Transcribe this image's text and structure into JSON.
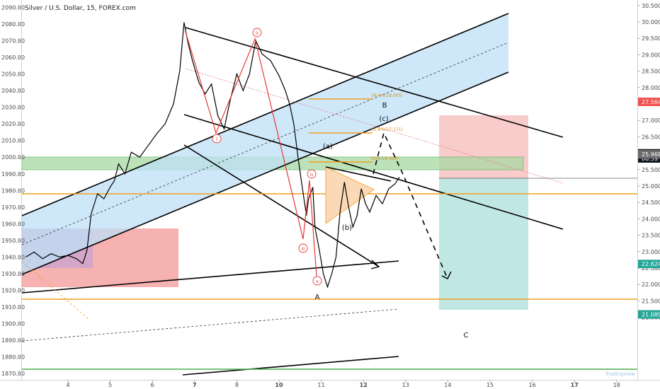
{
  "chart_data": {
    "type": "line",
    "title": "Silver / U.S. Dollar, 15, FOREX.com",
    "left_axis": {
      "ticks": [
        1870,
        1880,
        1890,
        1900,
        1910,
        1920,
        1930,
        1940,
        1950,
        1960,
        1970,
        1980,
        1990,
        2000,
        2010,
        2020,
        2030,
        2040,
        2050,
        2060,
        2070,
        2080,
        2090
      ],
      "tick_labels": [
        "1870.00",
        "1880.00",
        "1890.00",
        "1900.00",
        "1910.00",
        "1920.00",
        "1930.00",
        "1940.00",
        "1950.00",
        "1960.00",
        "1970.00",
        "1980.00",
        "1990.00",
        "2000.00",
        "2010.00",
        "2020.00",
        "2030.00",
        "2040.00",
        "2050.00",
        "2060.00",
        "2070.00",
        "2080.00",
        "2090.00"
      ]
    },
    "right_axis": {
      "ticks": [
        21.0,
        21.5,
        22.0,
        22.5,
        23.0,
        23.5,
        24.0,
        24.5,
        25.0,
        25.5,
        26.0,
        26.5,
        27.0,
        27.5,
        28.0,
        28.5,
        29.0,
        29.5,
        30.0,
        30.5
      ],
      "tick_labels": [
        "21.000",
        "21.500",
        "22.000",
        "22.500",
        "23.000",
        "23.500",
        "24.000",
        "24.500",
        "25.000",
        "25.500",
        "26.000",
        "26.500",
        "27.000",
        "27.500",
        "28.000",
        "28.500",
        "29.000",
        "29.500",
        "30.000",
        "30.500"
      ],
      "price_tags": [
        {
          "text": "27.564",
          "value": 27.564,
          "color": "#ef5350"
        },
        {
          "text": "25.996",
          "value": 25.996,
          "color": "#131722"
        },
        {
          "text": "00:39",
          "value": 25.84,
          "color": "#131722"
        },
        {
          "text": "25.968",
          "value": 25.968,
          "color": "#6b6b6b"
        },
        {
          "text": "22.624",
          "value": 22.624,
          "color": "#26a69a"
        },
        {
          "text": "21.089",
          "value": 21.089,
          "color": "#26a69a"
        }
      ]
    },
    "x_axis": {
      "ticks": [
        4,
        5,
        6,
        7,
        8,
        10,
        11,
        12,
        13,
        14,
        15,
        16,
        17,
        18
      ],
      "tick_labels": [
        "4",
        "5",
        "6",
        "7",
        "8",
        "10",
        "11",
        "12",
        "13",
        "14",
        "15",
        "16",
        "17",
        "18"
      ],
      "bold_ticks": [
        "7",
        "10",
        "12",
        "17"
      ]
    },
    "price_path": [
      [
        3.0,
        1940
      ],
      [
        3.2,
        1943
      ],
      [
        3.4,
        1939
      ],
      [
        3.6,
        1942
      ],
      [
        3.8,
        1940
      ],
      [
        4.0,
        1941
      ],
      [
        4.2,
        1939
      ],
      [
        4.35,
        1936
      ],
      [
        4.45,
        1944
      ],
      [
        4.55,
        1966
      ],
      [
        4.7,
        1978
      ],
      [
        4.85,
        1975
      ],
      [
        5.0,
        1982
      ],
      [
        5.1,
        1986
      ],
      [
        5.2,
        1996
      ],
      [
        5.35,
        1990
      ],
      [
        5.5,
        2003
      ],
      [
        5.7,
        2000
      ],
      [
        5.9,
        2007
      ],
      [
        6.1,
        2014
      ],
      [
        6.3,
        2020
      ],
      [
        6.5,
        2032
      ],
      [
        6.65,
        2052
      ],
      [
        6.75,
        2081
      ],
      [
        6.85,
        2068
      ],
      [
        6.95,
        2058
      ],
      [
        7.1,
        2045
      ],
      [
        7.25,
        2038
      ],
      [
        7.4,
        2044
      ],
      [
        7.55,
        2025
      ],
      [
        7.7,
        2017
      ],
      [
        7.85,
        2035
      ],
      [
        8.0,
        2050
      ],
      [
        8.15,
        2040
      ],
      [
        8.3,
        2050
      ],
      [
        8.45,
        2070
      ],
      [
        8.6,
        2062
      ],
      [
        8.8,
        2058
      ],
      [
        9.0,
        2049
      ],
      [
        9.15,
        2040
      ],
      [
        9.25,
        2032
      ],
      [
        9.35,
        2020
      ],
      [
        9.45,
        2000
      ],
      [
        9.55,
        1982
      ],
      [
        9.65,
        1965
      ],
      [
        9.7,
        1975
      ],
      [
        9.8,
        1982
      ],
      [
        9.85,
        1958
      ],
      [
        9.95,
        1945
      ],
      [
        10.05,
        1930
      ],
      [
        10.15,
        1922
      ],
      [
        10.25,
        1930
      ],
      [
        10.35,
        1940
      ],
      [
        10.45,
        1968
      ],
      [
        10.55,
        1985
      ],
      [
        10.65,
        1970
      ],
      [
        10.75,
        1958
      ],
      [
        10.85,
        1965
      ],
      [
        10.95,
        1981
      ],
      [
        11.05,
        1972
      ],
      [
        11.15,
        1967
      ],
      [
        11.3,
        1977
      ],
      [
        11.45,
        1972
      ],
      [
        11.6,
        1981
      ],
      [
        11.75,
        1984
      ],
      [
        11.85,
        1988
      ]
    ],
    "wave_labels": [
      {
        "text": "ii",
        "shape": "circle",
        "color": "#e53935"
      },
      {
        "text": "i",
        "shape": "circle",
        "color": "#e53935"
      },
      {
        "text": "iii",
        "shape": "circle",
        "color": "#e53935"
      },
      {
        "text": "iv",
        "shape": "circle",
        "color": "#e53935"
      },
      {
        "text": "v",
        "shape": "circle",
        "color": "#e53935"
      },
      {
        "text": "A",
        "shape": "plain",
        "color": "#111111"
      },
      {
        "text": "B",
        "shape": "plain",
        "color": "#111111"
      },
      {
        "text": "C",
        "shape": "plain",
        "color": "#111111"
      },
      {
        "text": "(a)",
        "shape": "plain",
        "color": "#111111"
      },
      {
        "text": "(b)",
        "shape": "plain",
        "color": "#111111"
      },
      {
        "text": "(c)",
        "shape": "plain",
        "color": "#111111"
      }
    ],
    "fib_labels": [
      "76.4%(28.005)",
      "61.8%(27.171)",
      "50%(26.498)"
    ],
    "horizontal_levels": [
      {
        "name": "resistance",
        "value": 25.968,
        "color": "#f0a020"
      },
      {
        "name": "support",
        "value": 22.92,
        "color": "#f0a020"
      },
      {
        "name": "green",
        "value": 21.089,
        "color": "#4caf50"
      }
    ],
    "zones": {
      "green_zone": [
        26.31,
        26.7
      ],
      "stop_zone": [
        26.0,
        27.56
      ],
      "target_zone": [
        22.62,
        26.0
      ]
    },
    "watermark": "TradingView"
  },
  "colors": {
    "candle": "#000000",
    "channel_fill": "#bfe0f7",
    "green_zone": "#a8d9a3",
    "stop_zone": "#f8c6c6",
    "target_zone": "#b9e4e0",
    "left_red": "#f5a3a3",
    "left_purple": "#cfa6d1",
    "wave_red": "#e53935",
    "fib_orange": "#f0a020",
    "triangle_fill": "#fbd9b7"
  }
}
